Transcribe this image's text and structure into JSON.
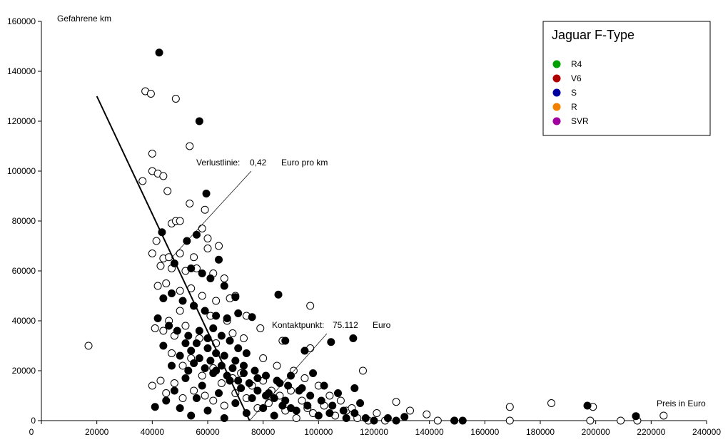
{
  "chart_data": {
    "type": "scatter",
    "xlabel": "Preis in Euro",
    "ylabel": "Gefahrene km",
    "xlim": [
      0,
      240000
    ],
    "ylim": [
      0,
      160000
    ],
    "x_ticks": [
      0,
      20000,
      40000,
      60000,
      80000,
      100000,
      120000,
      140000,
      160000,
      180000,
      200000,
      220000,
      240000
    ],
    "y_ticks": [
      0,
      20000,
      40000,
      60000,
      80000,
      100000,
      120000,
      140000,
      160000
    ],
    "legend": {
      "title": "Jaguar F-Type",
      "position": "top-right",
      "items": [
        {
          "label": "R4",
          "color": "#00a000"
        },
        {
          "label": "V6",
          "color": "#b00000"
        },
        {
          "label": "S",
          "color": "#0000a0"
        },
        {
          "label": "R",
          "color": "#f08000"
        },
        {
          "label": "SVR",
          "color": "#a000a0"
        }
      ]
    },
    "loss_line": {
      "x": [
        20000,
        75112
      ],
      "y": [
        130000,
        0
      ],
      "label_prefix": "Verlustlinie:",
      "label_value": "0,42",
      "label_unit": "Euro pro km"
    },
    "contact_point": {
      "label_prefix": "Kontaktpunkt:",
      "label_value": "75.112",
      "label_unit": "Euro"
    },
    "series": [
      {
        "fill": "open",
        "points": [
          [
            17000,
            30000
          ],
          [
            37500,
            132000
          ],
          [
            39500,
            131000
          ],
          [
            48500,
            129000
          ],
          [
            53500,
            110000
          ],
          [
            40000,
            107000
          ],
          [
            36500,
            96000
          ],
          [
            40000,
            100000
          ],
          [
            42000,
            99000
          ],
          [
            44000,
            98000
          ],
          [
            45500,
            92000
          ],
          [
            53500,
            87000
          ],
          [
            59000,
            84500
          ],
          [
            47000,
            79000
          ],
          [
            48500,
            80000
          ],
          [
            50000,
            80000
          ],
          [
            58000,
            77000
          ],
          [
            60000,
            73000
          ],
          [
            40000,
            67000
          ],
          [
            41500,
            72000
          ],
          [
            44000,
            65000
          ],
          [
            46000,
            65500
          ],
          [
            50000,
            67000
          ],
          [
            55000,
            65500
          ],
          [
            60000,
            69000
          ],
          [
            64000,
            70000
          ],
          [
            43000,
            62000
          ],
          [
            47000,
            61000
          ],
          [
            52000,
            60000
          ],
          [
            56000,
            61000
          ],
          [
            62000,
            59000
          ],
          [
            66000,
            57000
          ],
          [
            42000,
            54000
          ],
          [
            45000,
            55000
          ],
          [
            50000,
            52000
          ],
          [
            54000,
            53000
          ],
          [
            58000,
            50000
          ],
          [
            63000,
            48000
          ],
          [
            68000,
            49000
          ],
          [
            70000,
            50000
          ],
          [
            97000,
            46000
          ],
          [
            41000,
            37000
          ],
          [
            44000,
            36000
          ],
          [
            48000,
            34000
          ],
          [
            52000,
            38000
          ],
          [
            57000,
            33000
          ],
          [
            63000,
            31000
          ],
          [
            69000,
            35000
          ],
          [
            73000,
            33000
          ],
          [
            79000,
            37000
          ],
          [
            87000,
            32000
          ],
          [
            97000,
            29000
          ],
          [
            40000,
            14000
          ],
          [
            43000,
            16000
          ],
          [
            45000,
            11000
          ],
          [
            48000,
            15000
          ],
          [
            51000,
            9000
          ],
          [
            55000,
            12000
          ],
          [
            59000,
            10000
          ],
          [
            62000,
            8000
          ],
          [
            66000,
            6000
          ],
          [
            70000,
            11000
          ],
          [
            74000,
            9000
          ],
          [
            78000,
            5000
          ],
          [
            82000,
            7000
          ],
          [
            86000,
            10000
          ],
          [
            90000,
            12000
          ],
          [
            94000,
            8000
          ],
          [
            98000,
            3000
          ],
          [
            102000,
            6000
          ],
          [
            106000,
            2000
          ],
          [
            110000,
            4000
          ],
          [
            114000,
            1000
          ],
          [
            116000,
            20000
          ],
          [
            118000,
            0
          ],
          [
            121000,
            3000
          ],
          [
            124000,
            0
          ],
          [
            128000,
            7500
          ],
          [
            133000,
            4000
          ],
          [
            139000,
            2500
          ],
          [
            143000,
            0
          ],
          [
            149000,
            0
          ],
          [
            169000,
            5500
          ],
          [
            169000,
            0
          ],
          [
            184000,
            7000
          ],
          [
            198000,
            0
          ],
          [
            199000,
            5500
          ],
          [
            209000,
            0
          ],
          [
            215000,
            0
          ],
          [
            224500,
            2000
          ],
          [
            46000,
            40000
          ],
          [
            50000,
            44000
          ],
          [
            55000,
            46000
          ],
          [
            61000,
            42000
          ],
          [
            67000,
            40000
          ],
          [
            74000,
            42000
          ],
          [
            80000,
            25000
          ],
          [
            85000,
            22000
          ],
          [
            91000,
            20000
          ],
          [
            95000,
            17000
          ],
          [
            100000,
            14000
          ],
          [
            104000,
            10000
          ],
          [
            108000,
            8000
          ],
          [
            112000,
            5000
          ],
          [
            47000,
            27000
          ],
          [
            51000,
            22000
          ],
          [
            54000,
            25000
          ],
          [
            58000,
            18000
          ],
          [
            62000,
            21000
          ],
          [
            65000,
            15000
          ],
          [
            69000,
            17000
          ],
          [
            72000,
            19000
          ],
          [
            76000,
            14000
          ],
          [
            80000,
            16000
          ],
          [
            83000,
            12000
          ],
          [
            88000,
            4000
          ],
          [
            92000,
            1000
          ],
          [
            96000,
            5000
          ]
        ]
      },
      {
        "fill": "filled",
        "points": [
          [
            42500,
            147500
          ],
          [
            57000,
            120000
          ],
          [
            59500,
            91000
          ],
          [
            43500,
            75500
          ],
          [
            56000,
            74500
          ],
          [
            52500,
            72000
          ],
          [
            64000,
            64500
          ],
          [
            48000,
            63000
          ],
          [
            54000,
            61000
          ],
          [
            58000,
            59000
          ],
          [
            61000,
            57000
          ],
          [
            66000,
            54000
          ],
          [
            44000,
            49000
          ],
          [
            47000,
            51000
          ],
          [
            51000,
            48000
          ],
          [
            55000,
            46000
          ],
          [
            59000,
            44000
          ],
          [
            63000,
            42000
          ],
          [
            67000,
            41000
          ],
          [
            71000,
            43000
          ],
          [
            76000,
            41500
          ],
          [
            85500,
            50500
          ],
          [
            70000,
            49500
          ],
          [
            42000,
            41000
          ],
          [
            46000,
            38000
          ],
          [
            49000,
            36000
          ],
          [
            53000,
            34000
          ],
          [
            56000,
            31000
          ],
          [
            60000,
            29000
          ],
          [
            63000,
            27000
          ],
          [
            66000,
            26000
          ],
          [
            70000,
            24000
          ],
          [
            73000,
            22000
          ],
          [
            77000,
            20000
          ],
          [
            81000,
            18000
          ],
          [
            85000,
            16000
          ],
          [
            89000,
            14000
          ],
          [
            93000,
            12000
          ],
          [
            97000,
            10000
          ],
          [
            101000,
            8000
          ],
          [
            105000,
            6000
          ],
          [
            109000,
            4000
          ],
          [
            113000,
            3000
          ],
          [
            117000,
            1000
          ],
          [
            120000,
            0
          ],
          [
            125000,
            1000
          ],
          [
            128000,
            0
          ],
          [
            131000,
            1500
          ],
          [
            149000,
            0
          ],
          [
            152000,
            0
          ],
          [
            197000,
            6000
          ],
          [
            214500,
            1800
          ],
          [
            112500,
            33000
          ],
          [
            104500,
            31500
          ],
          [
            95000,
            28000
          ],
          [
            88000,
            32000
          ],
          [
            41000,
            5500
          ],
          [
            45000,
            8000
          ],
          [
            48000,
            12000
          ],
          [
            50000,
            5000
          ],
          [
            52000,
            17000
          ],
          [
            54000,
            2000
          ],
          [
            56000,
            9000
          ],
          [
            58000,
            14000
          ],
          [
            60000,
            4000
          ],
          [
            62000,
            19000
          ],
          [
            64000,
            11000
          ],
          [
            66000,
            1000
          ],
          [
            68000,
            16000
          ],
          [
            70000,
            7000
          ],
          [
            72000,
            13000
          ],
          [
            74000,
            3000
          ],
          [
            76000,
            9000
          ],
          [
            78000,
            17000
          ],
          [
            80000,
            5000
          ],
          [
            82000,
            11000
          ],
          [
            84000,
            2000
          ],
          [
            86000,
            15000
          ],
          [
            88000,
            8000
          ],
          [
            90000,
            18000
          ],
          [
            92000,
            4000
          ],
          [
            94000,
            13000
          ],
          [
            96000,
            6000
          ],
          [
            98000,
            19000
          ],
          [
            100000,
            2000
          ],
          [
            102000,
            14000
          ],
          [
            104000,
            3000
          ],
          [
            107000,
            11000
          ],
          [
            110000,
            1000
          ],
          [
            113000,
            13000
          ],
          [
            115000,
            7000
          ],
          [
            44000,
            30000
          ],
          [
            47000,
            22000
          ],
          [
            50000,
            26000
          ],
          [
            53000,
            20000
          ],
          [
            55000,
            23000
          ],
          [
            57000,
            25000
          ],
          [
            59000,
            21000
          ],
          [
            61000,
            24000
          ],
          [
            63000,
            20000
          ],
          [
            65000,
            22000
          ],
          [
            67000,
            18000
          ],
          [
            69000,
            21000
          ],
          [
            71000,
            16000
          ],
          [
            73000,
            19000
          ],
          [
            75000,
            15000
          ],
          [
            78000,
            12000
          ],
          [
            81000,
            10000
          ],
          [
            84000,
            9000
          ],
          [
            87000,
            6000
          ],
          [
            90000,
            5000
          ],
          [
            52000,
            31000
          ],
          [
            54000,
            28000
          ],
          [
            57000,
            36000
          ],
          [
            60000,
            33000
          ],
          [
            62000,
            37000
          ],
          [
            65000,
            34000
          ],
          [
            68000,
            32000
          ],
          [
            71000,
            29000
          ],
          [
            74000,
            27000
          ]
        ]
      }
    ]
  }
}
